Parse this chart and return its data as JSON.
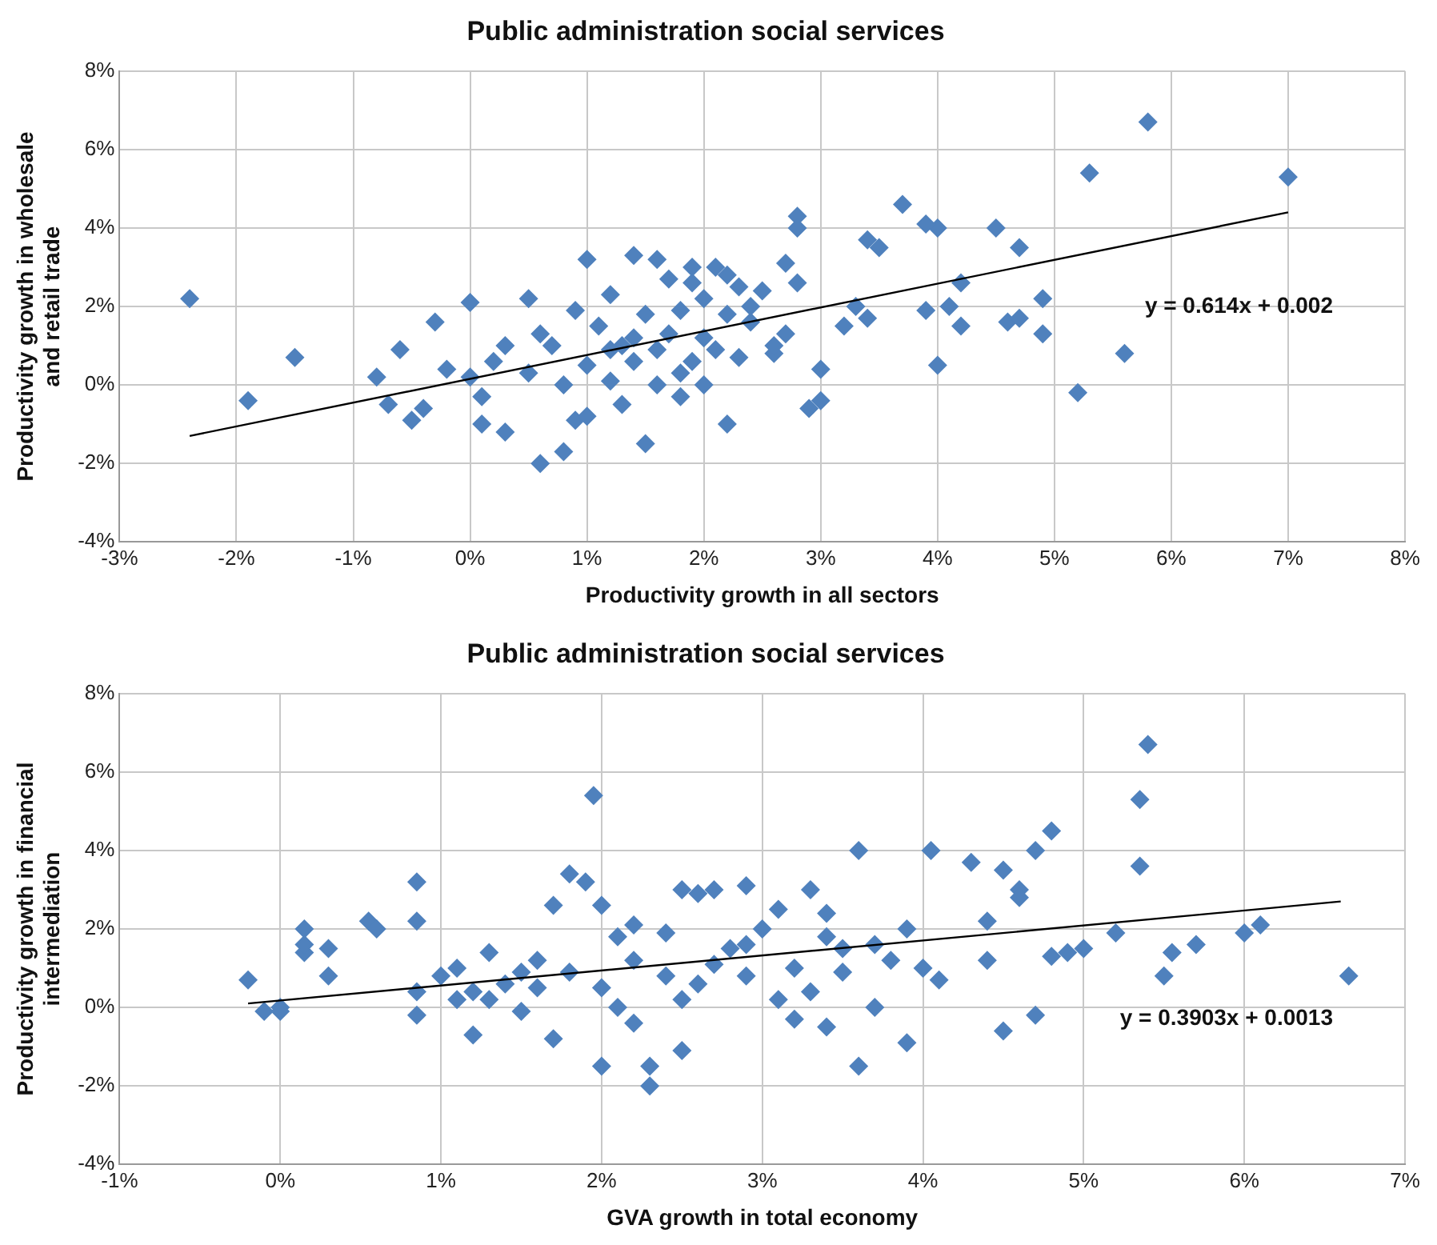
{
  "chart_data": [
    {
      "type": "scatter",
      "title": "Public administration social services",
      "xlabel": "Productivity growth in all sectors",
      "ylabel": "Productivity growth in wholesale and retail trade",
      "xlim": [
        -3,
        8
      ],
      "ylim": [
        -4,
        8
      ],
      "xticks": [
        {
          "value": -3,
          "label": "-3%"
        },
        {
          "value": -2,
          "label": "-2%"
        },
        {
          "value": -1,
          "label": "-1%"
        },
        {
          "value": 0,
          "label": "0%"
        },
        {
          "value": 1,
          "label": "1%"
        },
        {
          "value": 2,
          "label": "2%"
        },
        {
          "value": 3,
          "label": "3%"
        },
        {
          "value": 4,
          "label": "4%"
        },
        {
          "value": 5,
          "label": "5%"
        },
        {
          "value": 6,
          "label": "6%"
        },
        {
          "value": 7,
          "label": "7%"
        },
        {
          "value": 8,
          "label": "8%"
        }
      ],
      "yticks": [
        {
          "value": -4,
          "label": "-4%"
        },
        {
          "value": -2,
          "label": "-2%"
        },
        {
          "value": 0,
          "label": "0%"
        },
        {
          "value": 2,
          "label": "2%"
        },
        {
          "value": 4,
          "label": "4%"
        },
        {
          "value": 6,
          "label": "6%"
        },
        {
          "value": 8,
          "label": "8%"
        }
      ],
      "grid": true,
      "legend": false,
      "annotations": [
        "y = 0.614x + 0.002"
      ],
      "series": [
        {
          "type": "scatter",
          "color": "#4f81bd",
          "marker": "diamond",
          "x": [
            -2.4,
            -1.9,
            -1.5,
            5.8,
            5.3,
            7.0,
            5.2,
            5.6,
            4.9,
            4.9,
            4.7,
            4.5,
            4.6,
            4.7,
            4.2,
            4.2,
            4.0,
            3.9,
            3.7,
            4.0,
            3.9,
            4.1,
            3.5,
            3.4,
            3.3,
            3.2,
            3.4,
            3.0,
            2.9,
            3.0,
            2.8,
            2.8,
            2.7,
            2.8,
            2.7,
            2.6,
            2.6,
            2.5,
            2.3,
            2.2,
            2.4,
            2.1,
            1.9,
            1.7,
            1.5,
            1.8,
            1.6,
            1.4,
            1.0,
            1.2,
            0.5,
            0.6,
            0.8,
            0.9,
            0.3,
            0.0,
            -0.3,
            -0.6,
            -0.8,
            -0.7,
            -0.4,
            -0.5,
            -0.2,
            0.0,
            0.1,
            0.1,
            0.3,
            0.2,
            0.5,
            0.7,
            0.8,
            1.0,
            1.1,
            1.2,
            1.3,
            1.4,
            1.5,
            1.6,
            1.7,
            1.8,
            1.9,
            2.0,
            2.0,
            2.1,
            2.2,
            2.3,
            2.4,
            1.9,
            2.2,
            1.0,
            1.3,
            0.9,
            0.6,
            1.6,
            1.8,
            2.0,
            1.2,
            1.4
          ],
          "values": [
            2.2,
            -0.4,
            0.7,
            6.7,
            5.4,
            5.3,
            -0.2,
            0.8,
            1.3,
            2.2,
            3.5,
            4.0,
            1.6,
            1.7,
            2.6,
            1.5,
            4.0,
            4.1,
            4.6,
            0.5,
            1.9,
            2.0,
            3.5,
            3.7,
            2.0,
            1.5,
            1.7,
            0.4,
            -0.6,
            -0.4,
            4.3,
            4.0,
            3.1,
            2.6,
            1.3,
            0.8,
            1.0,
            2.4,
            2.5,
            -1.0,
            1.6,
            3.0,
            3.0,
            2.7,
            -1.5,
            0.3,
            3.2,
            3.3,
            3.2,
            2.3,
            2.2,
            -2.0,
            -1.7,
            -0.9,
            -1.2,
            2.1,
            1.6,
            0.9,
            0.2,
            -0.5,
            -0.6,
            -0.9,
            0.4,
            0.2,
            -0.3,
            -1.0,
            1.0,
            0.6,
            0.3,
            1.0,
            0.0,
            0.5,
            1.5,
            0.1,
            1.0,
            0.6,
            1.8,
            0.9,
            1.3,
            1.9,
            0.6,
            1.2,
            2.2,
            0.9,
            1.8,
            0.7,
            2.0,
            2.6,
            2.8,
            -0.8,
            -0.5,
            1.9,
            1.3,
            0.0,
            -0.3,
            0.0,
            0.9,
            1.2
          ]
        },
        {
          "type": "line",
          "color": "#000000",
          "marker": "none",
          "x": [
            -2.4,
            7.0
          ],
          "values": [
            -1.3,
            4.4
          ]
        }
      ]
    },
    {
      "type": "scatter",
      "title": "Public administration social services",
      "xlabel": "GVA growth in total economy",
      "ylabel": "Productivity growth in financial intermediation",
      "xlim": [
        -1,
        7
      ],
      "ylim": [
        -4,
        8
      ],
      "xticks": [
        {
          "value": -1,
          "label": "-1%"
        },
        {
          "value": 0,
          "label": "0%"
        },
        {
          "value": 1,
          "label": "1%"
        },
        {
          "value": 2,
          "label": "2%"
        },
        {
          "value": 3,
          "label": "3%"
        },
        {
          "value": 4,
          "label": "4%"
        },
        {
          "value": 5,
          "label": "5%"
        },
        {
          "value": 6,
          "label": "6%"
        },
        {
          "value": 7,
          "label": "7%"
        }
      ],
      "yticks": [
        {
          "value": -4,
          "label": "-4%"
        },
        {
          "value": -2,
          "label": "-2%"
        },
        {
          "value": 0,
          "label": "0%"
        },
        {
          "value": 2,
          "label": "2%"
        },
        {
          "value": 4,
          "label": "4%"
        },
        {
          "value": 6,
          "label": "6%"
        },
        {
          "value": 8,
          "label": "8%"
        }
      ],
      "grid": true,
      "legend": false,
      "annotations": [
        "y = 0.3903x + 0.0013"
      ],
      "series": [
        {
          "type": "scatter",
          "color": "#4f81bd",
          "marker": "diamond",
          "x": [
            -0.2,
            -0.1,
            0.0,
            0.0,
            0.15,
            0.15,
            0.15,
            0.3,
            0.3,
            0.55,
            0.6,
            0.85,
            0.85,
            0.85,
            0.85,
            1.1,
            1.2,
            1.2,
            1.3,
            1.4,
            1.5,
            1.6,
            1.7,
            1.7,
            1.8,
            1.9,
            1.95,
            2.0,
            2.0,
            2.1,
            2.2,
            2.2,
            2.3,
            2.3,
            2.4,
            2.5,
            2.5,
            2.6,
            2.7,
            2.8,
            2.9,
            2.9,
            3.0,
            3.1,
            3.2,
            3.3,
            3.3,
            3.4,
            3.4,
            3.5,
            3.5,
            3.6,
            3.6,
            3.7,
            3.7,
            3.8,
            3.9,
            3.9,
            4.0,
            4.05,
            4.1,
            4.3,
            4.4,
            4.4,
            4.5,
            4.5,
            4.6,
            4.6,
            4.7,
            4.7,
            4.8,
            4.8,
            4.9,
            5.0,
            5.2,
            5.35,
            5.4,
            5.35,
            5.5,
            5.55,
            5.7,
            6.0,
            6.1,
            6.65,
            1.0,
            1.3,
            1.6,
            1.8,
            2.0,
            2.2,
            2.4,
            2.6,
            2.7,
            2.9,
            3.1,
            3.2,
            3.4,
            1.1,
            1.5,
            2.1,
            2.5
          ],
          "values": [
            0.7,
            -0.1,
            0.0,
            -0.1,
            2.0,
            1.4,
            1.6,
            1.5,
            0.8,
            2.2,
            2.0,
            3.2,
            2.2,
            0.4,
            -0.2,
            1.0,
            0.4,
            -0.7,
            1.4,
            0.6,
            -0.1,
            1.2,
            2.6,
            -0.8,
            3.4,
            3.2,
            5.4,
            2.6,
            -1.5,
            1.8,
            -0.4,
            2.1,
            -1.5,
            -2.0,
            0.8,
            3.0,
            -1.1,
            2.9,
            3.0,
            1.5,
            3.1,
            0.8,
            2.0,
            0.2,
            1.0,
            3.0,
            0.4,
            2.4,
            -0.5,
            1.5,
            0.9,
            4.0,
            -1.5,
            1.6,
            0.0,
            1.2,
            2.0,
            -0.9,
            1.0,
            4.0,
            0.7,
            3.7,
            1.2,
            2.2,
            -0.6,
            3.5,
            3.0,
            2.8,
            -0.2,
            4.0,
            4.5,
            1.3,
            1.4,
            1.5,
            1.9,
            5.3,
            6.7,
            3.6,
            0.8,
            1.4,
            1.6,
            1.9,
            2.1,
            0.8,
            0.8,
            0.2,
            0.5,
            0.9,
            0.5,
            1.2,
            1.9,
            0.6,
            1.1,
            1.6,
            2.5,
            -0.3,
            1.8,
            0.2,
            0.9,
            0.0,
            0.2
          ]
        },
        {
          "type": "line",
          "color": "#000000",
          "marker": "none",
          "x": [
            -0.2,
            6.6
          ],
          "values": [
            0.1,
            2.7
          ]
        }
      ]
    }
  ]
}
